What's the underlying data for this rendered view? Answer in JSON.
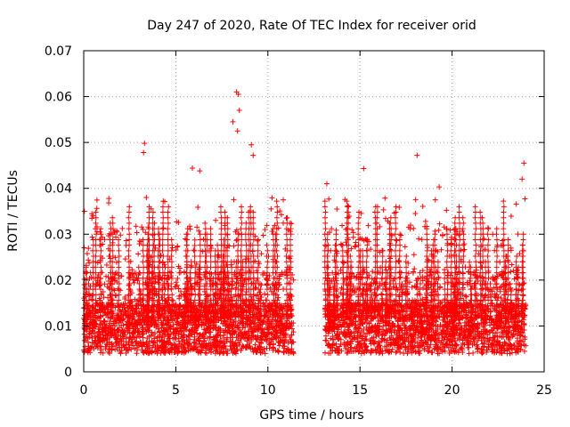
{
  "chart_data": {
    "type": "scatter",
    "title": "Day 247 of 2020, Rate Of TEC Index for receiver orid",
    "xlabel": "GPS time / hours",
    "ylabel": "ROTI / TECUs",
    "xlim": [
      0,
      25
    ],
    "ylim": [
      0,
      0.07
    ],
    "xticks": [
      "0",
      "5",
      "10",
      "15",
      "20",
      "25"
    ],
    "yticks": [
      "0",
      "0.01",
      "0.02",
      "0.03",
      "0.04",
      "0.05",
      "0.06",
      "0.07"
    ],
    "grid": true,
    "marker": "plus",
    "color": "#ff0000",
    "data_gap_hours": [
      11.4,
      13.1
    ],
    "notable_points": [
      {
        "x": 8.3,
        "y": 0.061
      },
      {
        "x": 8.4,
        "y": 0.0605
      },
      {
        "x": 8.45,
        "y": 0.057
      },
      {
        "x": 8.1,
        "y": 0.0545
      },
      {
        "x": 8.35,
        "y": 0.0525
      },
      {
        "x": 9.1,
        "y": 0.0495
      },
      {
        "x": 3.3,
        "y": 0.0498
      },
      {
        "x": 3.25,
        "y": 0.0478
      },
      {
        "x": 9.2,
        "y": 0.0472
      },
      {
        "x": 18.1,
        "y": 0.0472
      },
      {
        "x": 23.9,
        "y": 0.0455
      },
      {
        "x": 15.2,
        "y": 0.0443
      },
      {
        "x": 5.9,
        "y": 0.0444
      },
      {
        "x": 6.3,
        "y": 0.0438
      },
      {
        "x": 23.8,
        "y": 0.042
      },
      {
        "x": 13.2,
        "y": 0.041
      },
      {
        "x": 19.3,
        "y": 0.0403
      },
      {
        "x": 3.4,
        "y": 0.038
      },
      {
        "x": 11.0,
        "y": 0.0335
      },
      {
        "x": 0.5,
        "y": 0.034
      }
    ]
  }
}
